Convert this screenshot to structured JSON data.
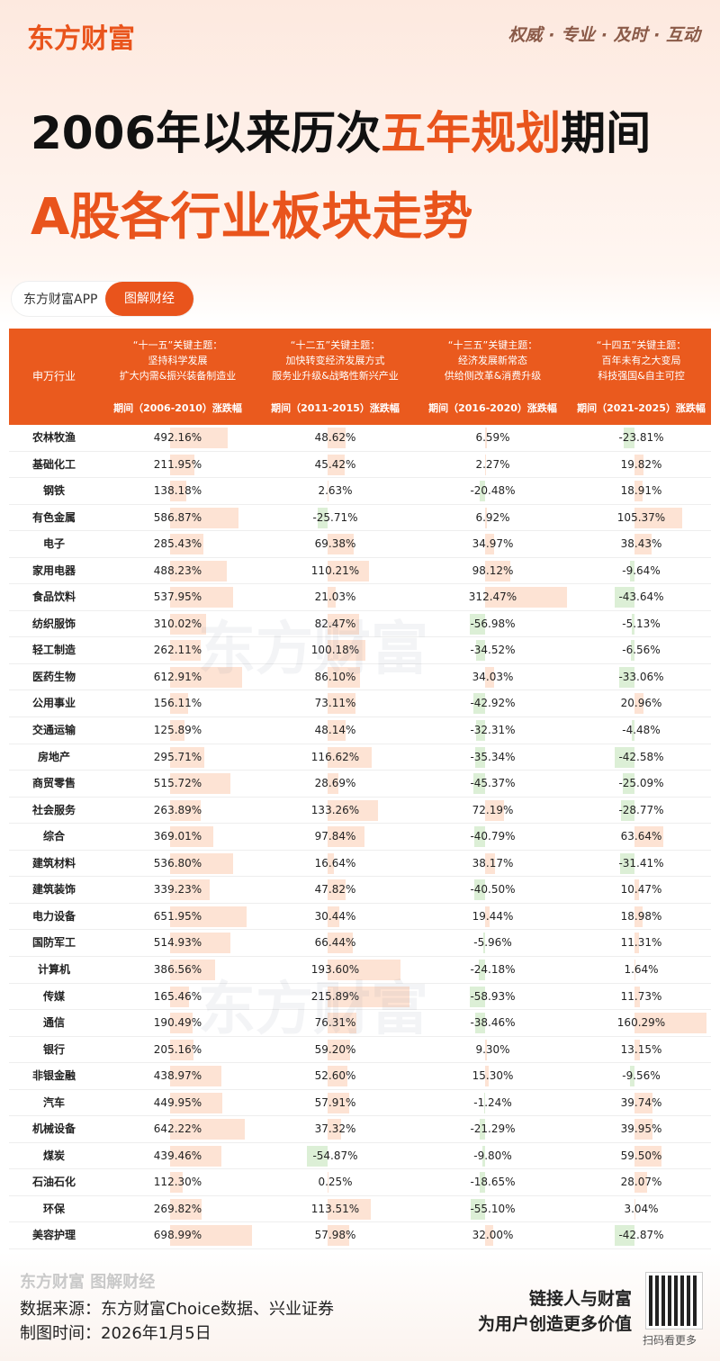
{
  "header": {
    "logo": "东方财富",
    "slogan": "权威 · 专业 · 及时 · 互动",
    "title_line1": [
      "2006年以来历次",
      "五年规划",
      "期间"
    ],
    "title_line2": "A股各行业板块走势",
    "app": "东方财富APP",
    "button": "图解财经"
  },
  "table": {
    "first_header": "申万行业",
    "columns": [
      {
        "plan": "“十一五”关键主题：",
        "theme1": "坚持科学发展",
        "theme2": "扩大内需&振兴装备制造业",
        "period": "期间（2006-2010）涨跌幅"
      },
      {
        "plan": "“十二五”关键主题：",
        "theme1": "加快转变经济发展方式",
        "theme2": "服务业升级&战略性新兴产业",
        "period": "期间（2011-2015）涨跌幅"
      },
      {
        "plan": "“十三五”关键主题：",
        "theme1": "经济发展新常态",
        "theme2": "供给侧改革&消费升级",
        "period": "期间（2016-2020）涨跌幅"
      },
      {
        "plan": "“十四五”关键主题：",
        "theme1": "百年未有之大变局",
        "theme2": "科技强国&自主可控",
        "period": "期间（2021-2025）涨跌幅"
      }
    ],
    "rows": [
      {
        "industry": "农林牧渔",
        "values": [
          "492.16%",
          "48.62%",
          "6.59%",
          "-23.81%"
        ]
      },
      {
        "industry": "基础化工",
        "values": [
          "211.95%",
          "45.42%",
          "2.27%",
          "19.82%"
        ]
      },
      {
        "industry": "钢铁",
        "values": [
          "138.18%",
          "2.63%",
          "-20.48%",
          "18.91%"
        ]
      },
      {
        "industry": "有色金属",
        "values": [
          "586.87%",
          "-25.71%",
          "6.92%",
          "105.37%"
        ]
      },
      {
        "industry": "电子",
        "values": [
          "285.43%",
          "69.38%",
          "34.97%",
          "38.43%"
        ]
      },
      {
        "industry": "家用电器",
        "values": [
          "488.23%",
          "110.21%",
          "98.12%",
          "-9.64%"
        ]
      },
      {
        "industry": "食品饮料",
        "values": [
          "537.95%",
          "21.03%",
          "312.47%",
          "-43.64%"
        ]
      },
      {
        "industry": "纺织服饰",
        "values": [
          "310.02%",
          "82.47%",
          "-56.98%",
          "-5.13%"
        ]
      },
      {
        "industry": "轻工制造",
        "values": [
          "262.11%",
          "100.18%",
          "-34.52%",
          "-6.56%"
        ]
      },
      {
        "industry": "医药生物",
        "values": [
          "612.91%",
          "86.10%",
          "34.03%",
          "-33.06%"
        ]
      },
      {
        "industry": "公用事业",
        "values": [
          "156.11%",
          "73.11%",
          "-42.92%",
          "20.96%"
        ]
      },
      {
        "industry": "交通运输",
        "values": [
          "125.89%",
          "48.14%",
          "-32.31%",
          "-4.48%"
        ]
      },
      {
        "industry": "房地产",
        "values": [
          "295.71%",
          "116.62%",
          "-35.34%",
          "-42.58%"
        ]
      },
      {
        "industry": "商贸零售",
        "values": [
          "515.72%",
          "28.69%",
          "-45.37%",
          "-25.09%"
        ]
      },
      {
        "industry": "社会服务",
        "values": [
          "263.89%",
          "133.26%",
          "72.19%",
          "-28.77%"
        ]
      },
      {
        "industry": "综合",
        "values": [
          "369.01%",
          "97.84%",
          "-40.79%",
          "63.64%"
        ]
      },
      {
        "industry": "建筑材料",
        "values": [
          "536.80%",
          "16.64%",
          "38.17%",
          "-31.41%"
        ]
      },
      {
        "industry": "建筑装饰",
        "values": [
          "339.23%",
          "47.82%",
          "-40.50%",
          "10.47%"
        ]
      },
      {
        "industry": "电力设备",
        "values": [
          "651.95%",
          "30.44%",
          "19.44%",
          "18.98%"
        ]
      },
      {
        "industry": "国防军工",
        "values": [
          "514.93%",
          "66.44%",
          "-5.96%",
          "11.31%"
        ]
      },
      {
        "industry": "计算机",
        "values": [
          "386.56%",
          "193.60%",
          "-24.18%",
          "1.64%"
        ]
      },
      {
        "industry": "传媒",
        "values": [
          "165.46%",
          "215.89%",
          "-58.93%",
          "11.73%"
        ]
      },
      {
        "industry": "通信",
        "values": [
          "190.49%",
          "76.31%",
          "-38.46%",
          "160.29%"
        ]
      },
      {
        "industry": "银行",
        "values": [
          "205.16%",
          "59.20%",
          "9.30%",
          "13.15%"
        ]
      },
      {
        "industry": "非银金融",
        "values": [
          "438.97%",
          "52.60%",
          "15.30%",
          "-9.56%"
        ]
      },
      {
        "industry": "汽车",
        "values": [
          "449.95%",
          "57.91%",
          "-1.24%",
          "39.74%"
        ]
      },
      {
        "industry": "机械设备",
        "values": [
          "642.22%",
          "37.32%",
          "-21.29%",
          "39.95%"
        ]
      },
      {
        "industry": "煤炭",
        "values": [
          "439.46%",
          "-54.87%",
          "-9.80%",
          "59.50%"
        ]
      },
      {
        "industry": "石油石化",
        "values": [
          "112.30%",
          "0.25%",
          "-18.65%",
          "28.07%"
        ]
      },
      {
        "industry": "环保",
        "values": [
          "269.82%",
          "113.51%",
          "-55.10%",
          "3.04%"
        ]
      },
      {
        "industry": "美容护理",
        "values": [
          "698.99%",
          "57.98%",
          "32.00%",
          "-42.87%"
        ]
      }
    ]
  },
  "watermark": "东方财富",
  "footer": {
    "brand": "东方财富 图解财经",
    "source": "数据来源：东方财富Choice数据、兴业证券",
    "date": "制图时间：2026年1月5日",
    "slogan1": "链接人与财富",
    "slogan2": "为用户创造更多价值",
    "qr": "扫码看更多"
  }
}
